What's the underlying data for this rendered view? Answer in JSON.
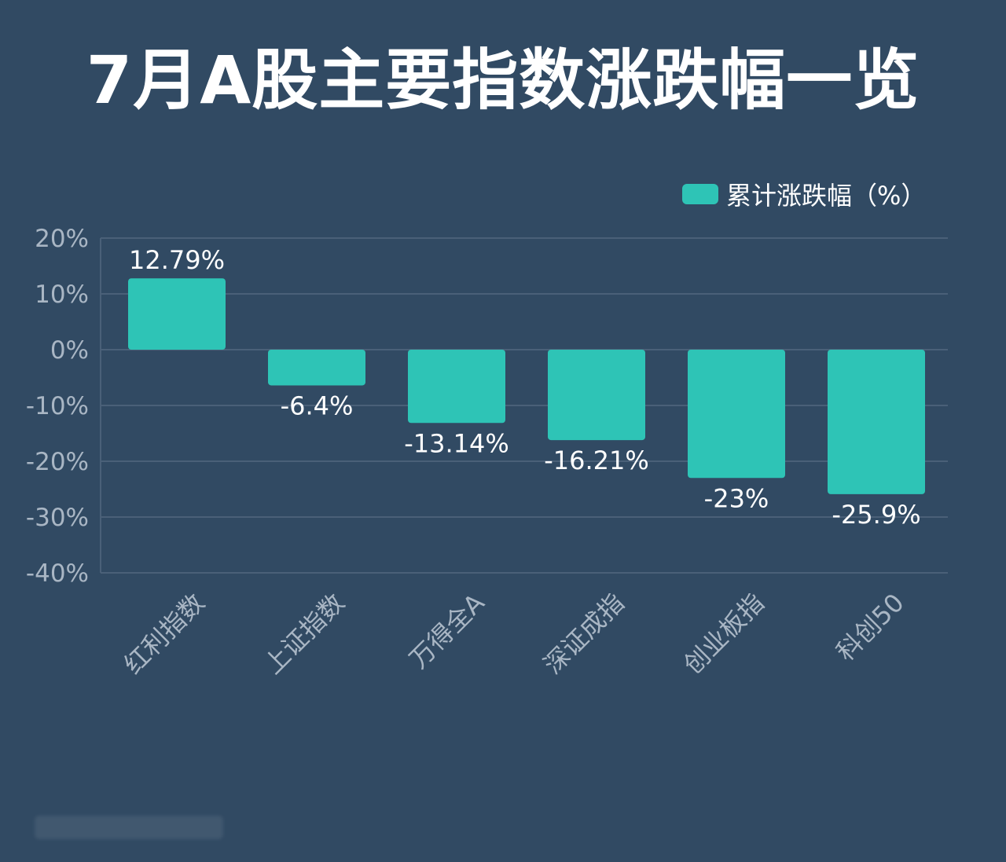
{
  "title": "7月A股主要指数涨跌幅一览",
  "chart_data": {
    "type": "bar",
    "categories": [
      "红利指数",
      "上证指数",
      "万得全A",
      "深证成指",
      "创业板指",
      "科创50"
    ],
    "series": [
      {
        "name": "累计涨跌幅（%）",
        "values": [
          12.79,
          -6.4,
          -13.14,
          -16.21,
          -23,
          -25.9
        ],
        "data_labels": [
          "12.79%",
          "-6.4%",
          "-13.14%",
          "-16.21%",
          "-23%",
          "-25.9%"
        ]
      }
    ],
    "ylim": [
      -40,
      20
    ],
    "yticks": [
      20,
      10,
      0,
      -10,
      -20,
      -30,
      -40
    ],
    "ytick_labels": [
      "20%",
      "10%",
      "0%",
      "-10%",
      "-20%",
      "-30%",
      "-40%"
    ],
    "legend_position": "top-right",
    "grid": true,
    "colors": {
      "bar": "#2ec4b6",
      "grid": "#4a6078",
      "background": "#314a63"
    }
  }
}
